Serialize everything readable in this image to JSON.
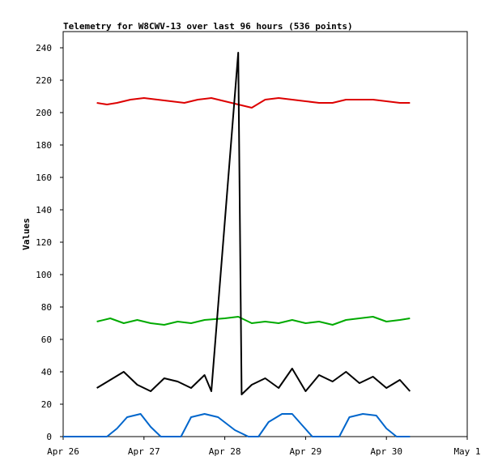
{
  "chart_data": {
    "type": "line",
    "title": "Telemetry for W8CWV-13 over last 96 hours (536 points)",
    "xlabel": "",
    "ylabel": "Values",
    "grid": false,
    "legend": "none",
    "xlim": [
      "2023-04-26",
      "2023-05-01"
    ],
    "ylim": [
      0,
      250
    ],
    "x_ticks": [
      {
        "label": "Apr 26",
        "date": "2023-04-26"
      },
      {
        "label": "Apr 27",
        "date": "2023-04-27"
      },
      {
        "label": "Apr 28",
        "date": "2023-04-28"
      },
      {
        "label": "Apr 29",
        "date": "2023-04-29"
      },
      {
        "label": "Apr 30",
        "date": "2023-04-30"
      },
      {
        "label": "May 1",
        "date": "2023-05-01"
      }
    ],
    "y_ticks": [
      0,
      20,
      40,
      60,
      80,
      100,
      120,
      140,
      160,
      180,
      200,
      220,
      240
    ],
    "series": [
      {
        "color": "#dd0000",
        "x": [
          "2023-04-26T10:00",
          "2023-04-26T13:00",
          "2023-04-26T16:00",
          "2023-04-26T20:00",
          "2023-04-27T00:00",
          "2023-04-27T04:00",
          "2023-04-27T08:00",
          "2023-04-27T12:00",
          "2023-04-27T16:00",
          "2023-04-27T20:00",
          "2023-04-28T00:00",
          "2023-04-28T04:00",
          "2023-04-28T08:00",
          "2023-04-28T12:00",
          "2023-04-28T16:00",
          "2023-04-28T20:00",
          "2023-04-29T00:00",
          "2023-04-29T04:00",
          "2023-04-29T08:00",
          "2023-04-29T12:00",
          "2023-04-29T16:00",
          "2023-04-29T20:00",
          "2023-04-30T00:00",
          "2023-04-30T04:00",
          "2023-04-30T07:00"
        ],
        "y": [
          206,
          205,
          206,
          208,
          209,
          208,
          207,
          206,
          208,
          209,
          207,
          205,
          203,
          208,
          209,
          208,
          207,
          206,
          206,
          208,
          208,
          208,
          207,
          206,
          206
        ]
      },
      {
        "color": "#00aa00",
        "x": [
          "2023-04-26T10:00",
          "2023-04-26T14:00",
          "2023-04-26T18:00",
          "2023-04-26T22:00",
          "2023-04-27T02:00",
          "2023-04-27T06:00",
          "2023-04-27T10:00",
          "2023-04-27T14:00",
          "2023-04-27T18:00",
          "2023-04-28T00:00",
          "2023-04-28T04:00",
          "2023-04-28T08:00",
          "2023-04-28T12:00",
          "2023-04-28T16:00",
          "2023-04-28T20:00",
          "2023-04-29T00:00",
          "2023-04-29T04:00",
          "2023-04-29T08:00",
          "2023-04-29T12:00",
          "2023-04-29T16:00",
          "2023-04-29T20:00",
          "2023-04-30T00:00",
          "2023-04-30T04:00",
          "2023-04-30T07:00"
        ],
        "y": [
          71,
          73,
          70,
          72,
          70,
          69,
          71,
          70,
          72,
          73,
          74,
          70,
          71,
          70,
          72,
          70,
          71,
          69,
          72,
          73,
          74,
          71,
          72,
          73
        ]
      },
      {
        "color": "#000000",
        "x": [
          "2023-04-26T10:00",
          "2023-04-26T14:00",
          "2023-04-26T18:00",
          "2023-04-26T22:00",
          "2023-04-27T02:00",
          "2023-04-27T06:00",
          "2023-04-27T10:00",
          "2023-04-27T14:00",
          "2023-04-27T18:00",
          "2023-04-27T20:00",
          "2023-04-28T04:00",
          "2023-04-28T05:00",
          "2023-04-28T08:00",
          "2023-04-28T12:00",
          "2023-04-28T16:00",
          "2023-04-28T20:00",
          "2023-04-29T00:00",
          "2023-04-29T04:00",
          "2023-04-29T08:00",
          "2023-04-29T12:00",
          "2023-04-29T16:00",
          "2023-04-29T20:00",
          "2023-04-30T00:00",
          "2023-04-30T04:00",
          "2023-04-30T07:00"
        ],
        "y": [
          30,
          35,
          40,
          32,
          28,
          36,
          34,
          30,
          38,
          28,
          237,
          26,
          32,
          36,
          30,
          42,
          28,
          38,
          34,
          40,
          33,
          37,
          30,
          35,
          28
        ]
      },
      {
        "color": "#0066cc",
        "x": [
          "2023-04-26T00:00",
          "2023-04-26T10:00",
          "2023-04-26T13:00",
          "2023-04-26T16:00",
          "2023-04-26T19:00",
          "2023-04-26T23:00",
          "2023-04-27T02:00",
          "2023-04-27T05:00",
          "2023-04-27T11:00",
          "2023-04-27T14:00",
          "2023-04-27T18:00",
          "2023-04-27T22:00",
          "2023-04-28T03:00",
          "2023-04-28T07:00",
          "2023-04-28T10:00",
          "2023-04-28T13:00",
          "2023-04-28T17:00",
          "2023-04-28T20:00",
          "2023-04-28T23:00",
          "2023-04-29T02:00",
          "2023-04-29T05:00",
          "2023-04-29T10:00",
          "2023-04-29T13:00",
          "2023-04-29T17:00",
          "2023-04-29T21:00",
          "2023-04-30T00:00",
          "2023-04-30T03:00",
          "2023-04-30T07:00"
        ],
        "y": [
          0,
          0,
          0,
          5,
          12,
          14,
          6,
          0,
          0,
          12,
          14,
          12,
          4,
          0,
          0,
          9,
          14,
          14,
          7,
          0,
          0,
          0,
          12,
          14,
          13,
          5,
          0,
          0
        ]
      }
    ]
  }
}
